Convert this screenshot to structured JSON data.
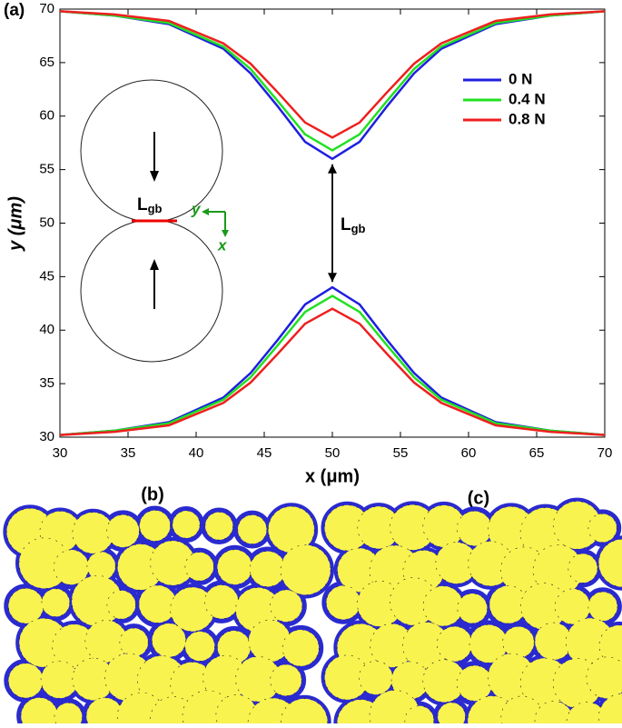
{
  "chart_data": {
    "type": "line",
    "panel_label": "(a)",
    "xlabel": "x (μm)",
    "ylabel": "y (μm)",
    "x": [
      30,
      34,
      38,
      42,
      44,
      46,
      48,
      50,
      52,
      54,
      56,
      58,
      62,
      66,
      70
    ],
    "series": [
      {
        "name": "0 N",
        "color": "#1f1fe0",
        "values": [
          69.8,
          69.4,
          68.6,
          66.3,
          64.0,
          60.9,
          57.6,
          56.0,
          57.6,
          60.9,
          64.0,
          66.3,
          68.6,
          69.4,
          69.8
        ],
        "lower_values": [
          30.2,
          30.6,
          31.4,
          33.7,
          36.0,
          39.1,
          42.4,
          44.0,
          42.4,
          39.1,
          36.0,
          33.7,
          31.4,
          30.6,
          30.2
        ]
      },
      {
        "name": "0.4 N",
        "color": "#22e022",
        "values": [
          69.8,
          69.4,
          68.7,
          66.5,
          64.4,
          61.4,
          58.3,
          56.8,
          58.3,
          61.4,
          64.4,
          66.5,
          68.7,
          69.4,
          69.8
        ],
        "lower_values": [
          30.2,
          30.6,
          31.3,
          33.5,
          35.6,
          38.6,
          41.7,
          43.2,
          41.7,
          38.6,
          35.6,
          33.5,
          31.3,
          30.6,
          30.2
        ]
      },
      {
        "name": "0.8 N",
        "color": "#ee1f1f",
        "values": [
          69.8,
          69.5,
          68.9,
          66.8,
          64.9,
          62.2,
          59.4,
          58.0,
          59.4,
          62.2,
          64.9,
          66.8,
          68.9,
          69.5,
          69.8
        ],
        "lower_values": [
          30.2,
          30.5,
          31.1,
          33.2,
          35.1,
          37.8,
          40.6,
          42.0,
          40.6,
          37.8,
          35.1,
          33.2,
          31.1,
          30.5,
          30.2
        ]
      }
    ],
    "xlim": [
      30,
      70
    ],
    "ylim": [
      30,
      70
    ],
    "xticks": [
      30,
      35,
      40,
      45,
      50,
      55,
      60,
      65,
      70
    ],
    "yticks": [
      30,
      35,
      40,
      45,
      50,
      55,
      60,
      65,
      70
    ],
    "legend": "upper right",
    "annotations": [
      {
        "text": "L",
        "subscript": "gb"
      },
      {
        "text": "L",
        "subscript": "gb"
      },
      {
        "text": "y"
      },
      {
        "text": "x"
      }
    ],
    "sub_panels": [
      "(b)",
      "(c)"
    ]
  }
}
